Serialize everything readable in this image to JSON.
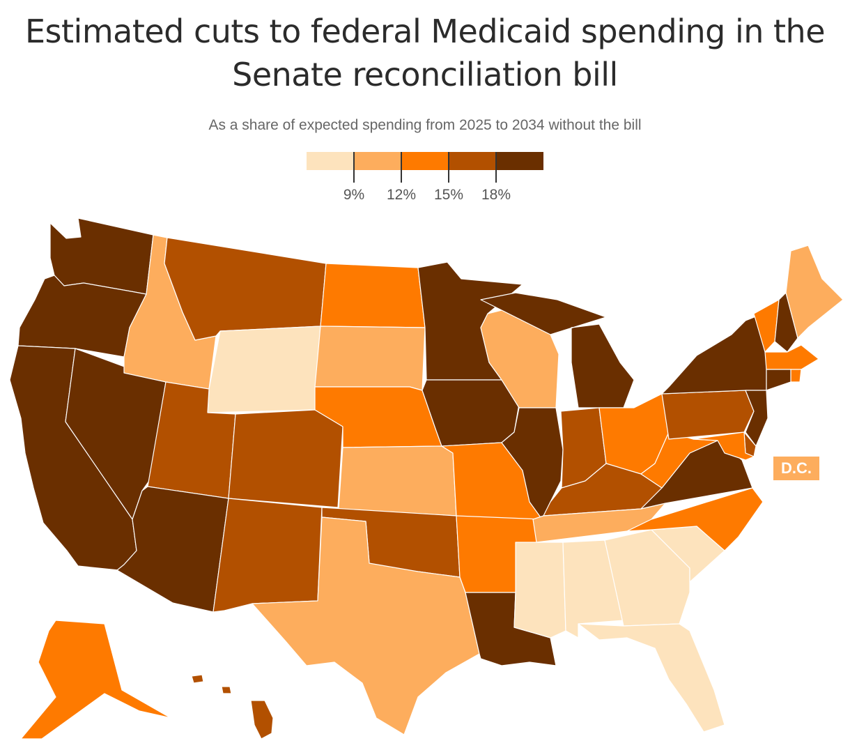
{
  "header": {
    "title_line1": "Estimated cuts to federal Medicaid spending in the",
    "title_line2": "Senate reconciliation bill",
    "subtitle": "As a share of expected spending from 2025 to 2034 without the bill"
  },
  "legend": {
    "colors": [
      "#fde3bd",
      "#fdad5d",
      "#fe7a00",
      "#b25000",
      "#6a2f00"
    ],
    "labels": [
      "9%",
      "12%",
      "15%",
      "18%"
    ]
  },
  "colors": {
    "lt9": "#fde3bd",
    "9to12": "#fdad5d",
    "12to15": "#fe7a00",
    "15to18": "#b25000",
    "gt18": "#6a2f00"
  },
  "states": {
    "WA": "gt18",
    "OR": "gt18",
    "CA": "gt18",
    "NV": "gt18",
    "AZ": "gt18",
    "ID": "9to12",
    "MT": "15to18",
    "WY": "lt9",
    "UT": "15to18",
    "CO": "15to18",
    "NM": "15to18",
    "ND": "12to15",
    "SD": "9to12",
    "NE": "12to15",
    "KS": "9to12",
    "OK": "15to18",
    "TX": "9to12",
    "MN": "gt18",
    "IA": "gt18",
    "MO": "12to15",
    "AR": "12to15",
    "LA": "gt18",
    "WI": "9to12",
    "IL": "gt18",
    "MI": "gt18",
    "IN": "15to18",
    "OH": "12to15",
    "KY": "15to18",
    "TN": "9to12",
    "MS": "lt9",
    "AL": "lt9",
    "GA": "lt9",
    "FL": "lt9",
    "SC": "lt9",
    "NC": "12to15",
    "VA": "gt18",
    "WV": "12to15",
    "PA": "15to18",
    "NY": "gt18",
    "VT": "12to15",
    "NH": "gt18",
    "ME": "9to12",
    "MA": "12to15",
    "RI": "12to15",
    "CT": "gt18",
    "NJ": "gt18",
    "DE": "15to18",
    "MD": "12to15",
    "AK": "12to15",
    "HI": "15to18",
    "DC": "9to12"
  },
  "dc_label": "D.C."
}
